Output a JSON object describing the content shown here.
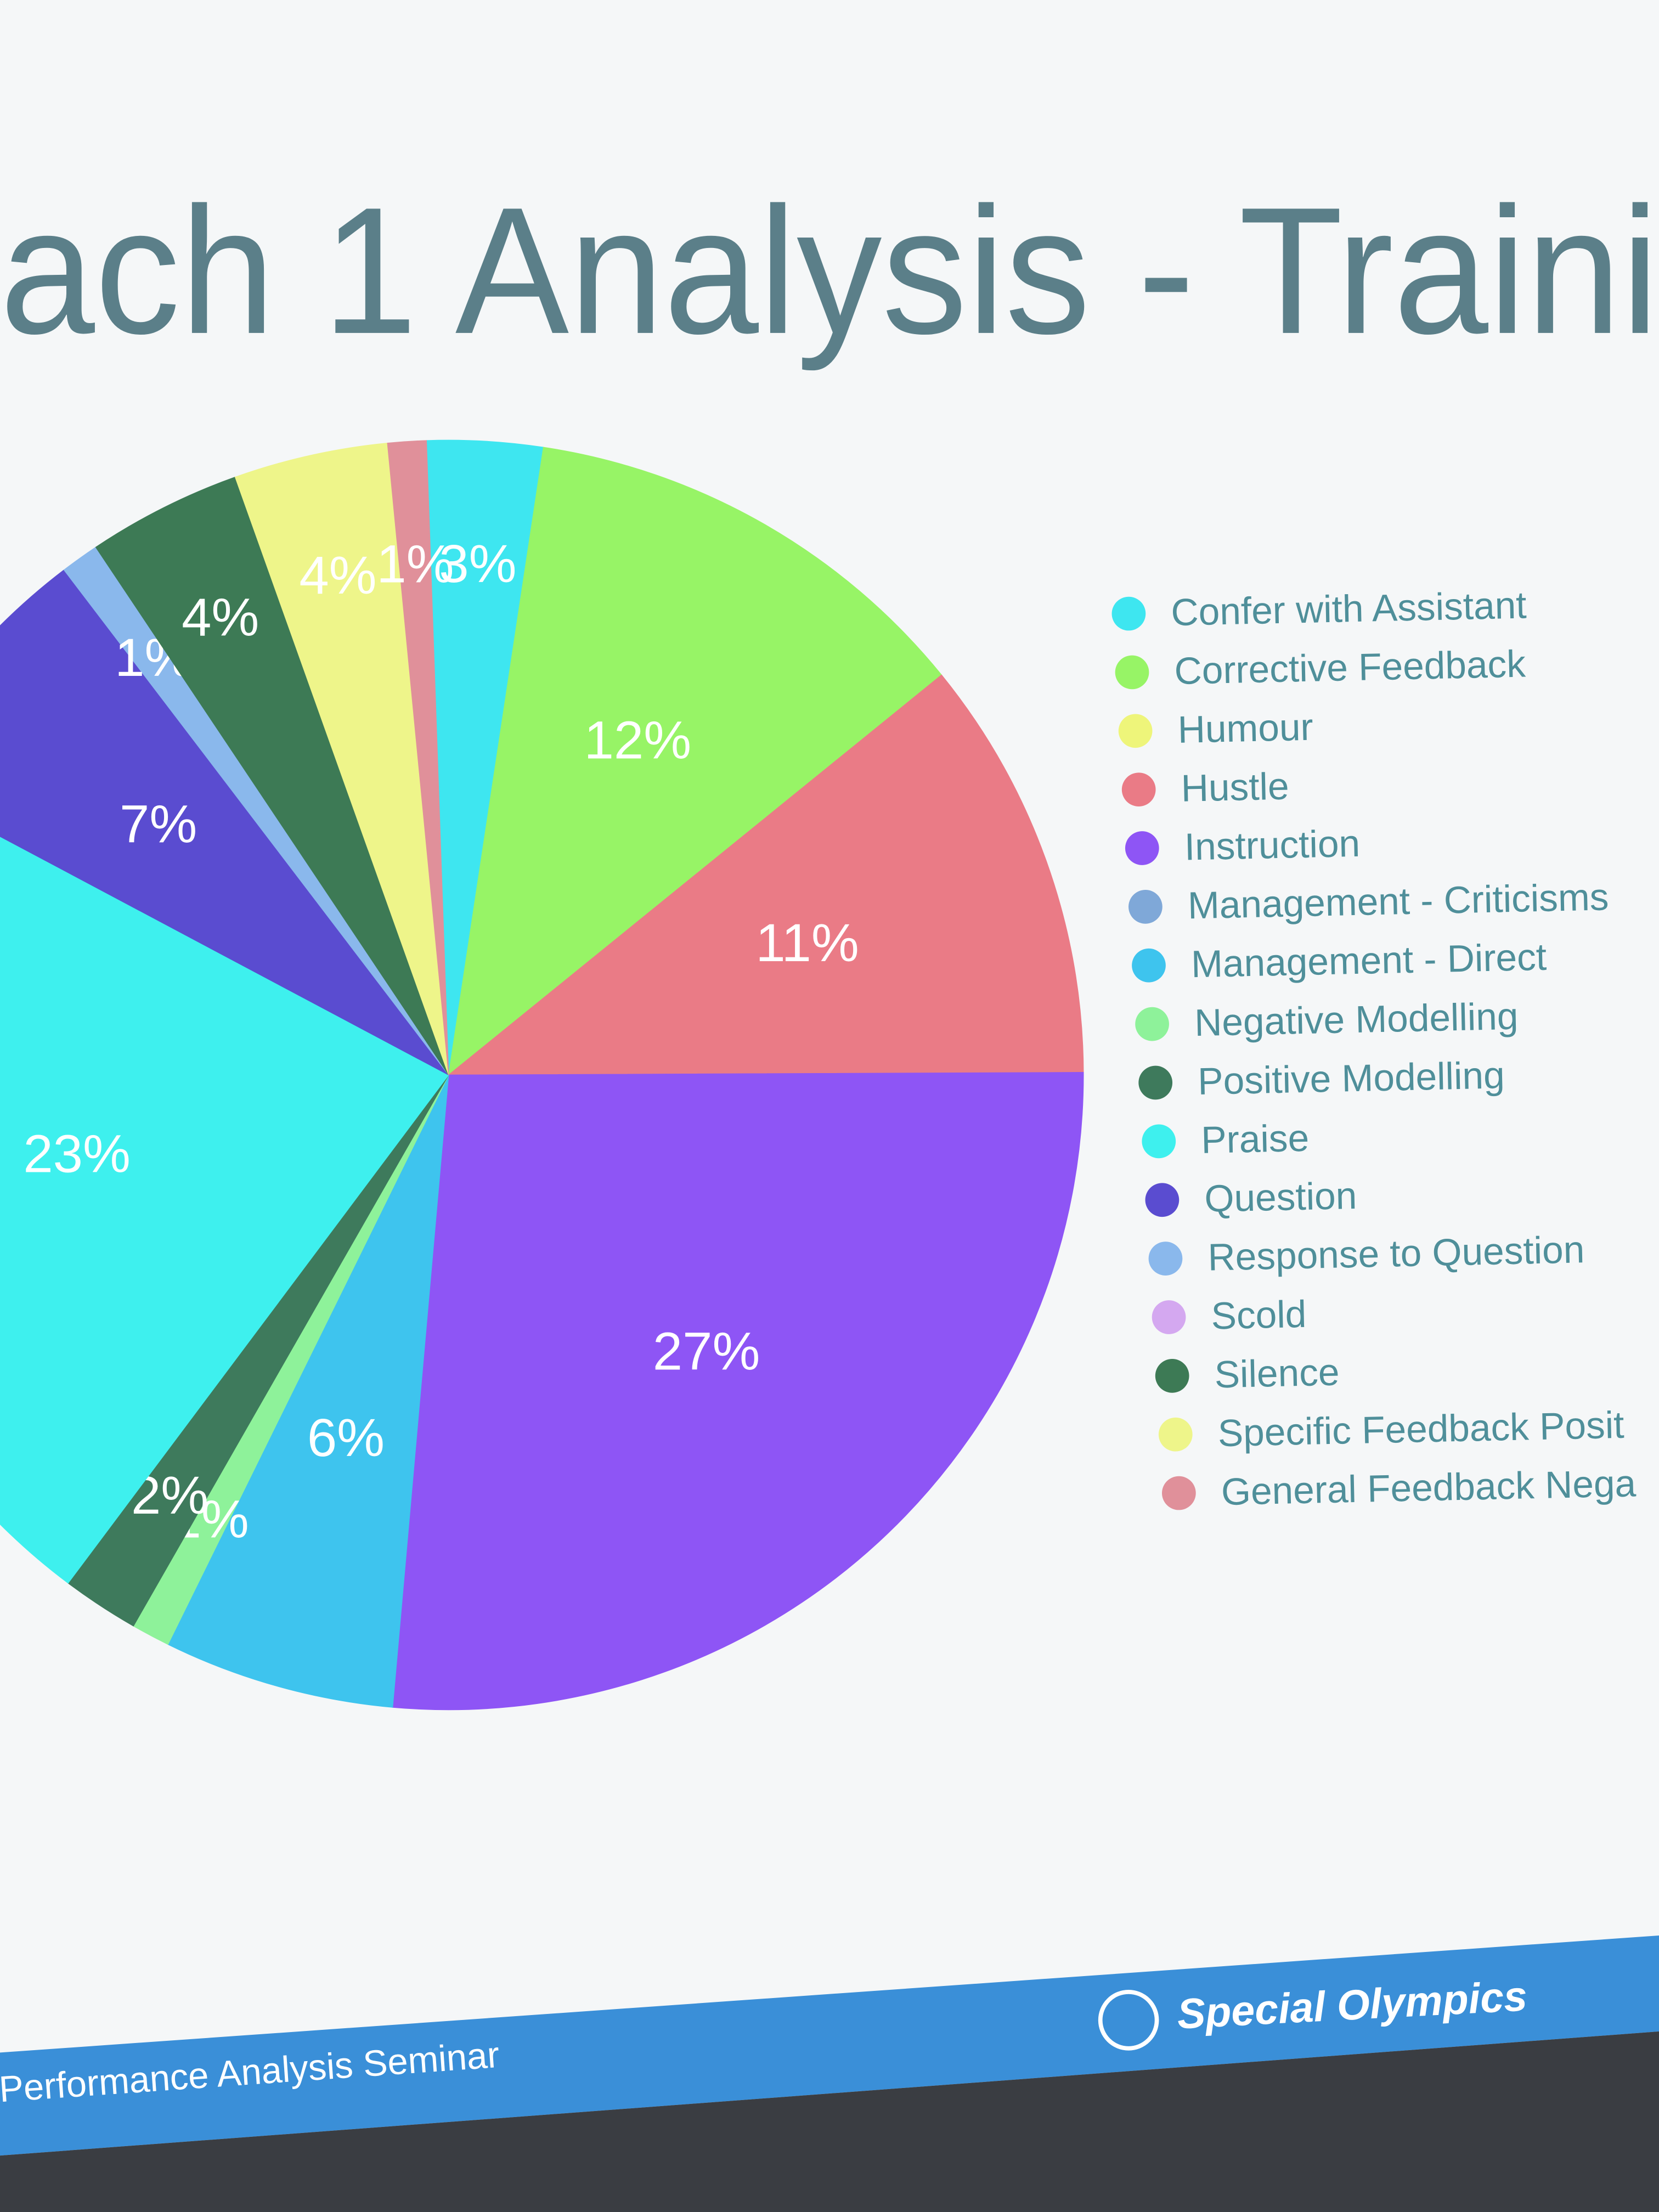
{
  "chart_data": {
    "type": "pie",
    "title": "ach 1 Analysis - Traini",
    "categories": [
      "Confer with Assistant",
      "Corrective Feedback",
      "Humour",
      "Hustle",
      "Instruction",
      "Management - Criticisms",
      "Management - Direct",
      "Negative Modelling",
      "Positive Modelling",
      "Praise",
      "Question",
      "Response to Question",
      "Scold",
      "Silence",
      "Specific Feedback Posit",
      "General Feedback Nega"
    ],
    "values": [
      3,
      12,
      0,
      11,
      27,
      0,
      6,
      1,
      2,
      23,
      7,
      1,
      0,
      4,
      4,
      1
    ],
    "value_labels": [
      "3%",
      "12%",
      null,
      "11%",
      "27%",
      null,
      "6%",
      "1%",
      "2%",
      "23%",
      "7%",
      "1%",
      null,
      "4%",
      "4%",
      "1%"
    ],
    "colors": [
      "#3ee6f0",
      "#97f466",
      "#eef57a",
      "#ea7b86",
      "#8e55f5",
      "#7fa8d8",
      "#3ec4ee",
      "#8ef29a",
      "#3e7a5c",
      "#3ef0ee",
      "#5a4cd0",
      "#8ab8ec",
      "#d4a8f0",
      "#3d7a55",
      "#eef58a",
      "#e0909a"
    ],
    "footer_left": "Performance Analysis Seminar",
    "footer_right": "Special Olympics"
  }
}
